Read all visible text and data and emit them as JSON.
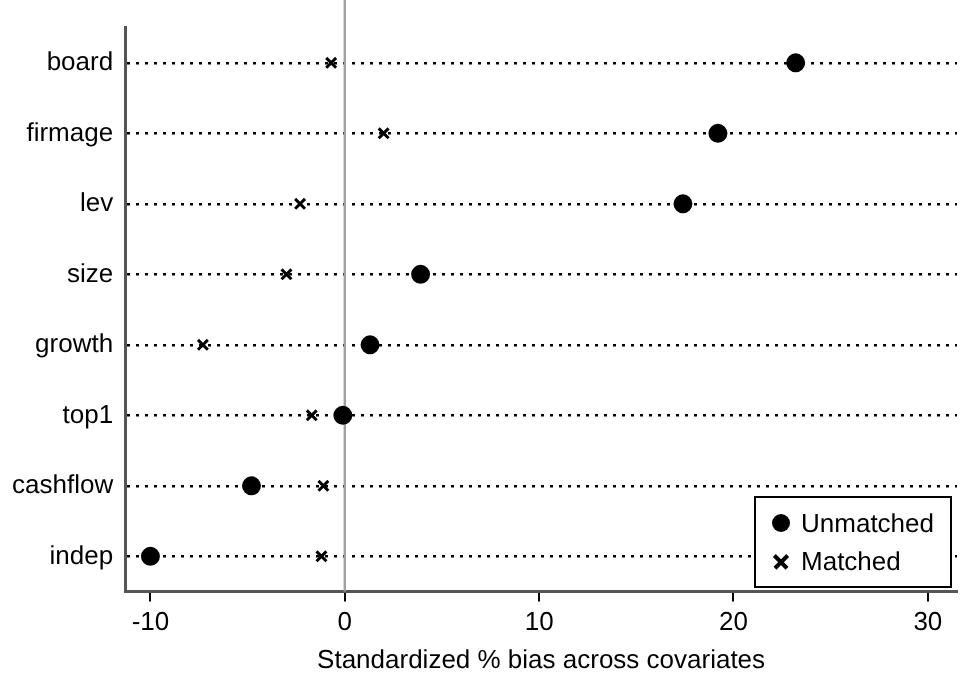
{
  "chart_data": {
    "type": "scatter",
    "xlabel": "Standardized % bias across covariates",
    "categories": [
      "board",
      "firmage",
      "lev",
      "size",
      "growth",
      "top1",
      "cashflow",
      "indep"
    ],
    "orientation": "horizontal",
    "xlim": [
      -11.3,
      31.5
    ],
    "xticks": [
      -10,
      0,
      10,
      20,
      30
    ],
    "grid": "y",
    "legend": "bottom right",
    "ref_lines": [
      {
        "axis": "x",
        "value": 0,
        "color": "#a0a0a0"
      }
    ],
    "series": [
      {
        "name": "Unmatched",
        "color": "#000000",
        "marker": "circle",
        "values": [
          23.2,
          19.2,
          17.4,
          3.9,
          1.3,
          -0.1,
          -4.8,
          -10.0
        ]
      },
      {
        "name": "Matched",
        "color": "#000000",
        "marker": "cross",
        "values": [
          -0.7,
          2.0,
          -2.3,
          -3.0,
          -7.3,
          -1.7,
          -1.1,
          -1.2
        ]
      }
    ]
  }
}
